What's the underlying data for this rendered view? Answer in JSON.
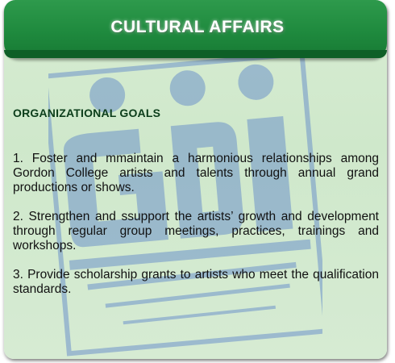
{
  "header": {
    "title": "CULTURAL AFFAIRS"
  },
  "section": {
    "heading": "ORGANIZATIONAL GOALS",
    "goals": [
      "1.  Foster and mmaintain a harmonious relationships among Gordon College artists and talents through annual grand productions or shows.",
      "2.  Strengthen and ssupport the artists’ growth and development through regular group meetings, practices, trainings and workshops.",
      "3.  Provide scholarship grants to artists who meet the qualification standards."
    ]
  },
  "watermark": {
    "icon": "gordon-college-logo-watermark",
    "color": "#4f79c9"
  },
  "colors": {
    "header_green": "#1f8a3e",
    "card_background": "#d3e9cf",
    "heading_text": "#0b3d1a"
  }
}
